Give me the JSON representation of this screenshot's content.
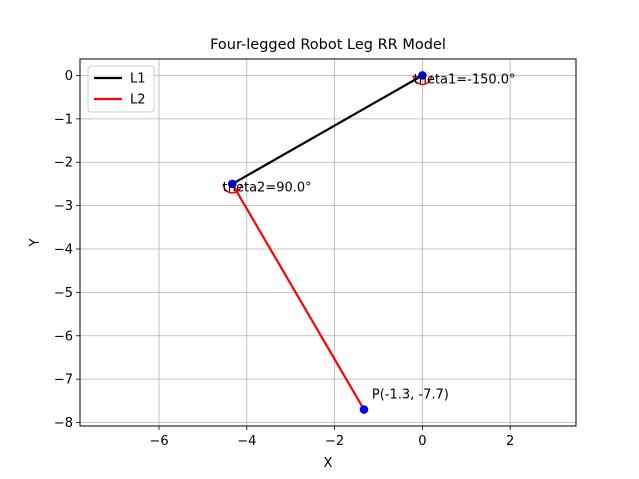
{
  "chart_data": {
    "type": "line",
    "title": "Four-legged Robot Leg RR Model",
    "xlabel": "X",
    "ylabel": "Y",
    "xlim": [
      -7.8,
      3.5
    ],
    "ylim": [
      -8.08,
      0.38
    ],
    "xticks": [
      -6,
      -4,
      -2,
      0,
      2
    ],
    "xtick_labels": [
      "−6",
      "−4",
      "−2",
      "0",
      "2"
    ],
    "yticks": [
      0,
      -1,
      -2,
      -3,
      -4,
      -5,
      -6,
      -7,
      -8
    ],
    "ytick_labels": [
      "0",
      "−1",
      "−2",
      "−3",
      "−4",
      "−5",
      "−6",
      "−7",
      "−8"
    ],
    "grid": true,
    "legend_position": "upper-left",
    "series": [
      {
        "name": "L1",
        "color": "#000000",
        "x": [
          0,
          -4.33
        ],
        "y": [
          0,
          -2.5
        ]
      },
      {
        "name": "L2",
        "color": "#ff0000",
        "x": [
          -4.33,
          -1.33
        ],
        "y": [
          -2.5,
          -7.7
        ]
      }
    ],
    "joints": {
      "color": "#0000ff",
      "points": [
        {
          "x": 0,
          "y": 0
        },
        {
          "x": -4.33,
          "y": -2.5
        },
        {
          "x": -1.33,
          "y": -7.7
        }
      ]
    },
    "angle_arcs": [
      {
        "x": 0,
        "y": 0,
        "color": "#ff0000"
      },
      {
        "x": -4.33,
        "y": -2.5,
        "color": "#ff0000"
      }
    ],
    "annotations": [
      {
        "text": "theta1=-150.0°",
        "x": -0.2,
        "y": -0.18
      },
      {
        "text": "theta2=90.0°",
        "x": -4.55,
        "y": -2.68
      },
      {
        "text": "P(-1.3, -7.7)",
        "x": -1.15,
        "y": -7.45
      }
    ]
  }
}
